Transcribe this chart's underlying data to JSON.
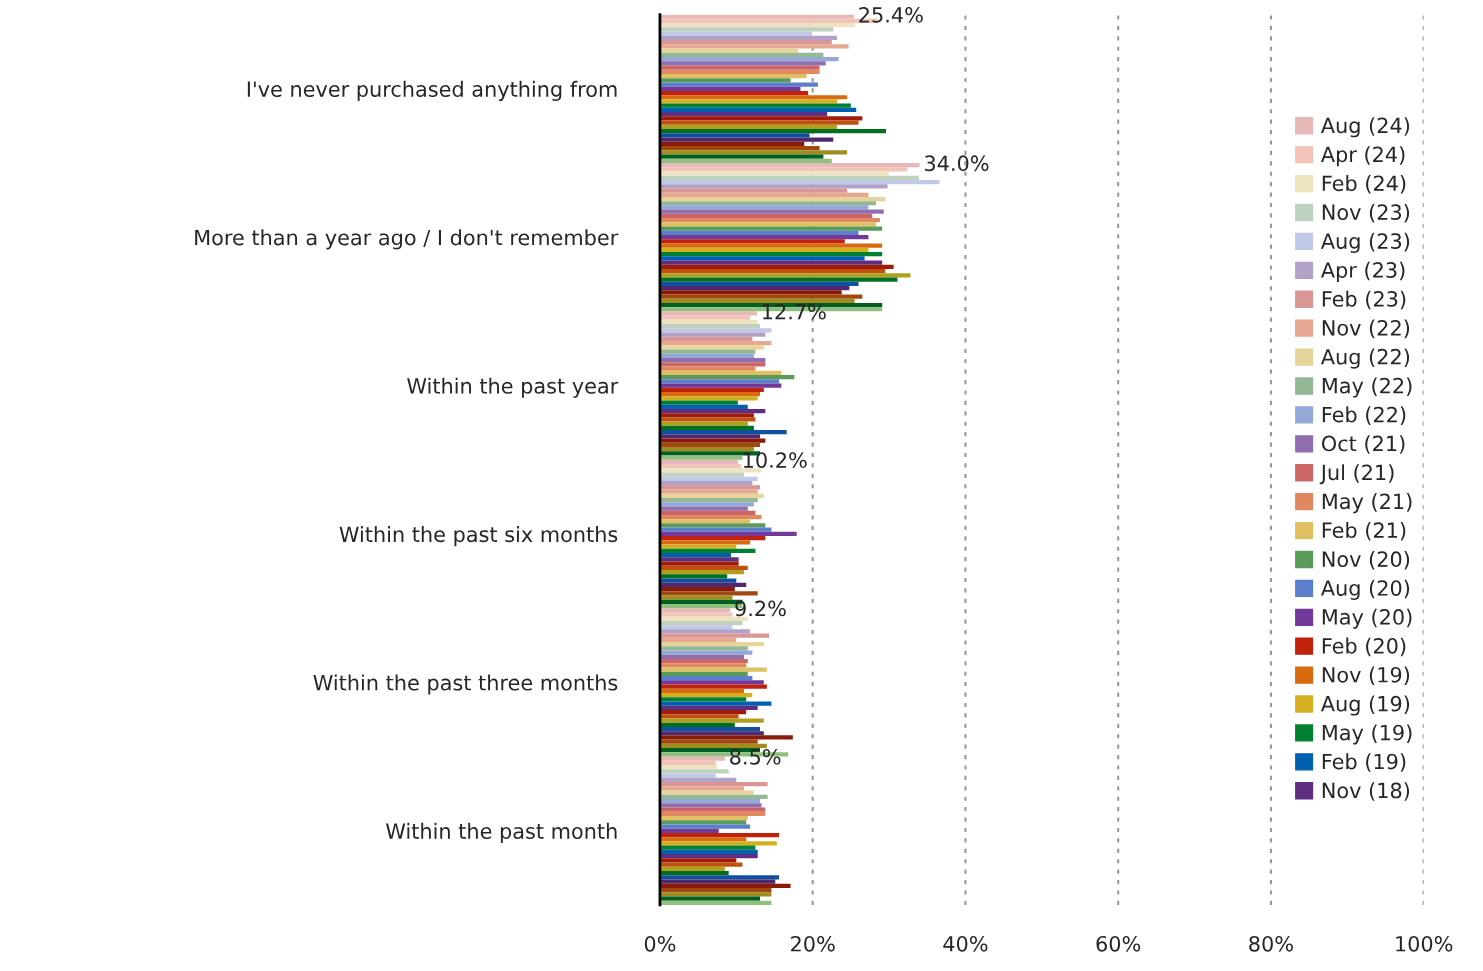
{
  "chart_data": {
    "type": "bar",
    "orientation": "horizontal",
    "categories": [
      "I've never purchased anything from",
      "More than a year ago / I don't remember",
      "Within the past year",
      "Within the past six months",
      "Within the past three months",
      "Within the past month"
    ],
    "series": [
      {
        "name": "Aug (24)",
        "color": "#e6b9b8",
        "values": [
          25.4,
          34.0,
          12.7,
          10.2,
          9.2,
          8.5
        ],
        "value_labels": [
          "25.4%",
          "34.0%",
          "12.7%",
          "10.2%",
          "9.2%",
          "8.5%"
        ]
      },
      {
        "name": "Apr (24)",
        "color": "#f2c4b8",
        "values": [
          28.5,
          32.4,
          11.8,
          10.6,
          9.5,
          7.3
        ]
      },
      {
        "name": "Feb (24)",
        "color": "#ede3c0",
        "values": [
          25.5,
          30.0,
          12.8,
          13.3,
          11.5,
          7.5
        ]
      },
      {
        "name": "Nov (23)",
        "color": "#bfd2bf",
        "values": [
          22.7,
          33.9,
          13.1,
          11.0,
          10.8,
          9.0
        ]
      },
      {
        "name": "Aug (23)",
        "color": "#c0c9e6",
        "values": [
          19.9,
          36.6,
          14.6,
          12.8,
          9.5,
          7.3
        ]
      },
      {
        "name": "Apr (23)",
        "color": "#b3a2c7",
        "values": [
          23.2,
          29.8,
          13.8,
          12.1,
          11.8,
          10.0
        ]
      },
      {
        "name": "Feb (23)",
        "color": "#d99694",
        "values": [
          22.5,
          24.5,
          12.1,
          13.1,
          14.3,
          14.1
        ]
      },
      {
        "name": "Nov (22)",
        "color": "#e6a890",
        "values": [
          24.7,
          27.3,
          14.6,
          12.8,
          10.0,
          11.0
        ]
      },
      {
        "name": "Aug (22)",
        "color": "#e6d49a",
        "values": [
          18.1,
          29.5,
          13.6,
          13.6,
          13.6,
          12.3
        ]
      },
      {
        "name": "May (22)",
        "color": "#93b893",
        "values": [
          21.4,
          28.3,
          12.5,
          12.8,
          11.5,
          14.1
        ]
      },
      {
        "name": "Feb (22)",
        "color": "#95a9d9",
        "values": [
          23.4,
          27.3,
          12.3,
          12.3,
          12.1,
          13.1
        ]
      },
      {
        "name": "Oct (21)",
        "color": "#8f6fb0",
        "values": [
          21.7,
          29.3,
          13.8,
          11.5,
          11.0,
          13.3
        ]
      },
      {
        "name": "Jul (21)",
        "color": "#cc6666",
        "values": [
          20.9,
          27.8,
          13.8,
          12.5,
          11.5,
          13.8
        ]
      },
      {
        "name": "May (21)",
        "color": "#e08860",
        "values": [
          20.9,
          28.8,
          12.5,
          13.3,
          11.3,
          13.8
        ]
      },
      {
        "name": "Feb (21)",
        "color": "#e0c060",
        "values": [
          19.2,
          28.3,
          15.9,
          11.8,
          14.0,
          11.5
        ]
      },
      {
        "name": "Nov (20)",
        "color": "#5a9a5a",
        "values": [
          17.1,
          29.1,
          17.6,
          13.8,
          11.5,
          11.3
        ]
      },
      {
        "name": "Aug (20)",
        "color": "#5b7fcc",
        "values": [
          20.7,
          26.0,
          15.6,
          14.6,
          12.1,
          11.8
        ]
      },
      {
        "name": "May (20)",
        "color": "#70399a",
        "values": [
          18.4,
          27.3,
          15.9,
          17.9,
          13.6,
          7.7
        ]
      },
      {
        "name": "Feb (20)",
        "color": "#c0220c",
        "values": [
          19.4,
          24.2,
          13.6,
          13.8,
          14.0,
          15.6
        ]
      },
      {
        "name": "Nov (19)",
        "color": "#d86a10",
        "values": [
          24.5,
          29.1,
          13.1,
          11.8,
          11.0,
          11.3
        ]
      },
      {
        "name": "Aug (19)",
        "color": "#d4b020",
        "values": [
          23.2,
          27.3,
          12.8,
          10.0,
          12.1,
          15.3
        ]
      },
      {
        "name": "May (19)",
        "color": "#008030",
        "values": [
          25.0,
          29.1,
          10.2,
          12.5,
          11.3,
          12.5
        ]
      },
      {
        "name": "Feb (19)",
        "color": "#0060b0",
        "values": [
          25.7,
          26.8,
          11.5,
          9.3,
          14.6,
          12.8
        ]
      },
      {
        "name": "Nov (18)",
        "color": "#5e2e80",
        "values": [
          21.9,
          29.1,
          13.8,
          10.3,
          12.8,
          12.8
        ]
      },
      {
        "color": "#a01c0c",
        "values": [
          26.5,
          30.6,
          12.3,
          10.3,
          11.3,
          10.0
        ]
      },
      {
        "color": "#c05010",
        "values": [
          26.0,
          29.5,
          12.5,
          11.5,
          10.3,
          10.8
        ]
      },
      {
        "color": "#b0a020",
        "values": [
          23.2,
          32.8,
          11.5,
          11.0,
          13.6,
          8.5
        ]
      },
      {
        "color": "#007020",
        "values": [
          29.6,
          31.1,
          12.3,
          8.8,
          9.8,
          9.0
        ]
      },
      {
        "color": "#1050a0",
        "values": [
          19.6,
          26.0,
          16.6,
          10.0,
          13.1,
          15.6
        ]
      },
      {
        "color": "#502870",
        "values": [
          22.7,
          24.8,
          13.1,
          11.3,
          13.6,
          15.1
        ]
      },
      {
        "color": "#8a1a0a",
        "values": [
          18.9,
          23.8,
          13.8,
          9.8,
          17.4,
          17.1
        ]
      },
      {
        "color": "#a04810",
        "values": [
          20.9,
          26.5,
          13.1,
          12.8,
          12.8,
          14.6
        ]
      },
      {
        "color": "#a08c20",
        "values": [
          24.5,
          25.5,
          12.3,
          9.5,
          14.0,
          14.6
        ]
      },
      {
        "color": "#006020",
        "values": [
          21.4,
          29.1,
          13.1,
          10.8,
          13.1,
          13.1
        ]
      },
      {
        "color": "#90c080",
        "values": [
          22.5,
          29.1,
          10.8,
          10.8,
          16.8,
          14.6
        ]
      }
    ],
    "xlim": [
      0,
      100
    ],
    "xticks": [
      {
        "value": 0,
        "label": "0%"
      },
      {
        "value": 20,
        "label": "20%"
      },
      {
        "value": 40,
        "label": "40%"
      },
      {
        "value": 60,
        "label": "60%"
      },
      {
        "value": 80,
        "label": "80%"
      },
      {
        "value": 100,
        "label": "100%"
      }
    ],
    "grid": "x",
    "legend": "right"
  }
}
